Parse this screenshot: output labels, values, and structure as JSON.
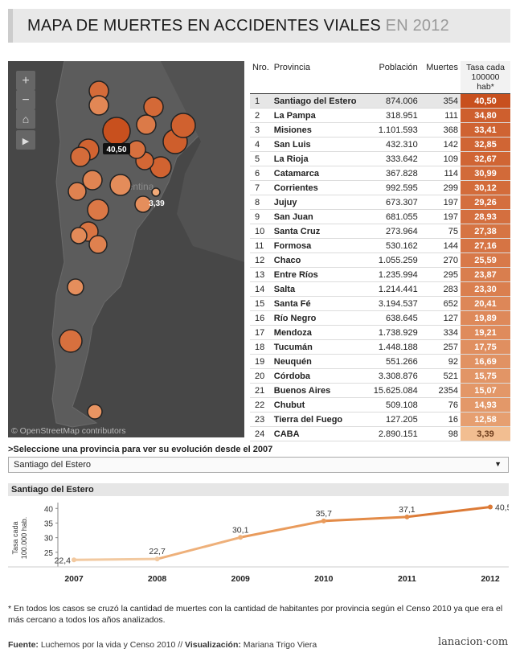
{
  "header": {
    "title_main": "MAPA DE MUERTES EN ACCIDENTES VIALES",
    "title_year": "EN 2012"
  },
  "map": {
    "credit": "© OpenStreetMap contributors",
    "country_label": "Argentina",
    "zoom_in": "+",
    "zoom_out": "−",
    "home": "⌂",
    "play": "▶",
    "tooltip_max": "40,50",
    "tooltip_min": "3,39"
  },
  "table": {
    "headers": {
      "nro": "Nro.",
      "provincia": "Provincia",
      "poblacion": "Población",
      "muertes": "Muertes",
      "tasa1": "Tasa cada",
      "tasa2": "100000 hab*"
    },
    "rows": [
      {
        "nro": "1",
        "provincia": "Santiago del Estero",
        "poblacion": "874.006",
        "muertes": "354",
        "tasa": "40,50",
        "v": 40.5
      },
      {
        "nro": "2",
        "provincia": "La Pampa",
        "poblacion": "318.951",
        "muertes": "111",
        "tasa": "34,80",
        "v": 34.8
      },
      {
        "nro": "3",
        "provincia": "Misiones",
        "poblacion": "1.101.593",
        "muertes": "368",
        "tasa": "33,41",
        "v": 33.41
      },
      {
        "nro": "4",
        "provincia": "San Luis",
        "poblacion": "432.310",
        "muertes": "142",
        "tasa": "32,85",
        "v": 32.85
      },
      {
        "nro": "5",
        "provincia": "La Rioja",
        "poblacion": "333.642",
        "muertes": "109",
        "tasa": "32,67",
        "v": 32.67
      },
      {
        "nro": "6",
        "provincia": "Catamarca",
        "poblacion": "367.828",
        "muertes": "114",
        "tasa": "30,99",
        "v": 30.99
      },
      {
        "nro": "7",
        "provincia": "Corrientes",
        "poblacion": "992.595",
        "muertes": "299",
        "tasa": "30,12",
        "v": 30.12
      },
      {
        "nro": "8",
        "provincia": "Jujuy",
        "poblacion": "673.307",
        "muertes": "197",
        "tasa": "29,26",
        "v": 29.26
      },
      {
        "nro": "9",
        "provincia": "San Juan",
        "poblacion": "681.055",
        "muertes": "197",
        "tasa": "28,93",
        "v": 28.93
      },
      {
        "nro": "10",
        "provincia": "Santa Cruz",
        "poblacion": "273.964",
        "muertes": "75",
        "tasa": "27,38",
        "v": 27.38
      },
      {
        "nro": "11",
        "provincia": "Formosa",
        "poblacion": "530.162",
        "muertes": "144",
        "tasa": "27,16",
        "v": 27.16
      },
      {
        "nro": "12",
        "provincia": "Chaco",
        "poblacion": "1.055.259",
        "muertes": "270",
        "tasa": "25,59",
        "v": 25.59
      },
      {
        "nro": "13",
        "provincia": "Entre Ríos",
        "poblacion": "1.235.994",
        "muertes": "295",
        "tasa": "23,87",
        "v": 23.87
      },
      {
        "nro": "14",
        "provincia": "Salta",
        "poblacion": "1.214.441",
        "muertes": "283",
        "tasa": "23,30",
        "v": 23.3
      },
      {
        "nro": "15",
        "provincia": "Santa Fé",
        "poblacion": "3.194.537",
        "muertes": "652",
        "tasa": "20,41",
        "v": 20.41
      },
      {
        "nro": "16",
        "provincia": "Río Negro",
        "poblacion": "638.645",
        "muertes": "127",
        "tasa": "19,89",
        "v": 19.89
      },
      {
        "nro": "17",
        "provincia": "Mendoza",
        "poblacion": "1.738.929",
        "muertes": "334",
        "tasa": "19,21",
        "v": 19.21
      },
      {
        "nro": "18",
        "provincia": "Tucumán",
        "poblacion": "1.448.188",
        "muertes": "257",
        "tasa": "17,75",
        "v": 17.75
      },
      {
        "nro": "19",
        "provincia": "Neuquén",
        "poblacion": "551.266",
        "muertes": "92",
        "tasa": "16,69",
        "v": 16.69
      },
      {
        "nro": "20",
        "provincia": "Córdoba",
        "poblacion": "3.308.876",
        "muertes": "521",
        "tasa": "15,75",
        "v": 15.75
      },
      {
        "nro": "21",
        "provincia": "Buenos Aires",
        "poblacion": "15.625.084",
        "muertes": "2354",
        "tasa": "15,07",
        "v": 15.07
      },
      {
        "nro": "22",
        "provincia": "Chubut",
        "poblacion": "509.108",
        "muertes": "76",
        "tasa": "14,93",
        "v": 14.93
      },
      {
        "nro": "23",
        "provincia": "Tierra del Fuego",
        "poblacion": "127.205",
        "muertes": "16",
        "tasa": "12,58",
        "v": 12.58
      },
      {
        "nro": "24",
        "provincia": "CABA",
        "poblacion": "2.890.151",
        "muertes": "98",
        "tasa": "3,39",
        "v": 3.39
      }
    ]
  },
  "selector": {
    "prompt": ">Seleccione una provincia para ver su evolución desde el 2007",
    "selected": "Santiago del Estero"
  },
  "chart_data": {
    "type": "line",
    "title": "Santiago del Estero",
    "ylabel": "Tasa cada 100.000 hab.",
    "x": [
      "2007",
      "2008",
      "2009",
      "2010",
      "2011",
      "2012"
    ],
    "values": [
      22.4,
      22.7,
      30.1,
      35.7,
      37.1,
      40.5
    ],
    "labels": [
      "22,4",
      "22,7",
      "30,1",
      "35,7",
      "37,1",
      "40,5"
    ],
    "yticks": [
      "25",
      "30",
      "35",
      "40"
    ],
    "ylim": [
      20,
      42
    ],
    "grid": false
  },
  "note": "* En todos los casos se cruzó la cantidad de muertes con la cantidad de habitantes por provincia según el Censo 2010 ya que era el más cercano a todos los años analizados.",
  "source": {
    "label": "Fuente:",
    "text": "Luchemos por la vida y Censo 2010 // ",
    "vlabel": "Visualización:",
    "vtext": "Mariana Trigo Viera"
  },
  "logo": "lanacion·com",
  "colors": {
    "high": "#c8501e",
    "mid": "#e8833a",
    "low": "#f2b98a",
    "map_bg": "#4a4a4a",
    "land": "#5a5a5a"
  }
}
